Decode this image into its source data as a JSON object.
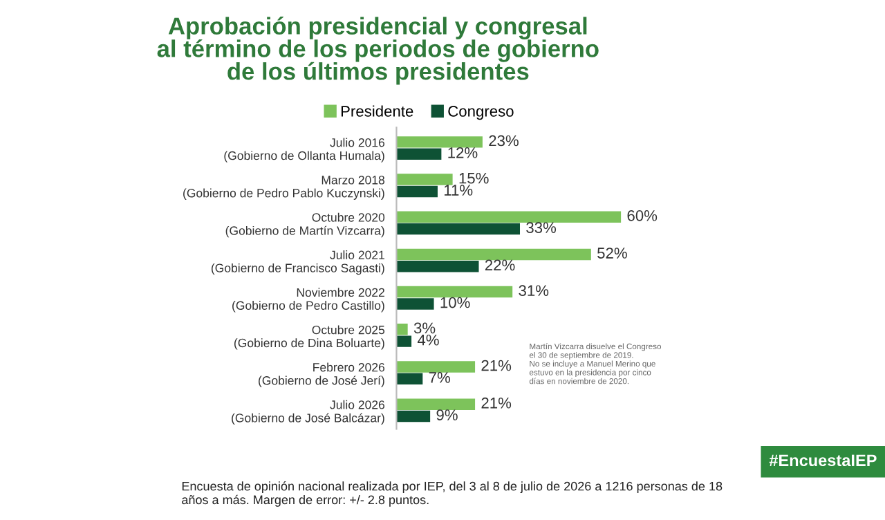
{
  "chart_data": {
    "type": "bar",
    "orientation": "horizontal",
    "title": "Aprobación presidencial y congresal\nal término de los periodos de gobierno\nde los últimos presidentes",
    "categories": [
      "Julio 2016\n(Gobierno de Ollanta Humala)",
      "Marzo 2018\n(Gobierno de Pedro Pablo Kuczynski)",
      "Octubre 2020\n(Gobierno de Martín Vizcarra)",
      "Julio 2021\n(Gobierno de Francisco Sagasti)",
      "Noviembre 2022\n(Gobierno de Pedro Castillo)",
      "Octubre 2025\n(Gobierno de Dina Boluarte)",
      "Febrero 2026\n(Gobierno de José Jerí)",
      "Julio 2026\n(Gobierno de José Balcázar)"
    ],
    "series": [
      {
        "name": "Presidente",
        "color": "#7dc35b",
        "values": [
          23,
          15,
          60,
          52,
          31,
          3,
          21,
          21
        ],
        "value_labels": [
          "23%",
          "15%",
          "60%",
          "52%",
          "31%",
          "3%",
          "21%",
          "21%"
        ]
      },
      {
        "name": "Congreso",
        "color": "#0e5235",
        "values": [
          12,
          11,
          33,
          22,
          10,
          4,
          7,
          9
        ],
        "value_labels": [
          "12%",
          "11%",
          "33%",
          "22%",
          "10%",
          "4%",
          "7%",
          "9%"
        ]
      }
    ],
    "legend": "top",
    "grid": false,
    "annotations": [
      "Martín Vizcarra disuelve el Congreso\nel 30 de septiembre de 2019.\nNo se incluye a Manuel Merino que\nestuvo en la presidencia por cinco\ndías en noviembre de 2020.",
      "#EncuestaIEP",
      "Encuesta de opinión nacional realizada por IEP, del 3 al 8 de julio de 2026 a 1216 personas de 18\naños a más. Margen de error: +/- 2.8 puntos."
    ]
  }
}
